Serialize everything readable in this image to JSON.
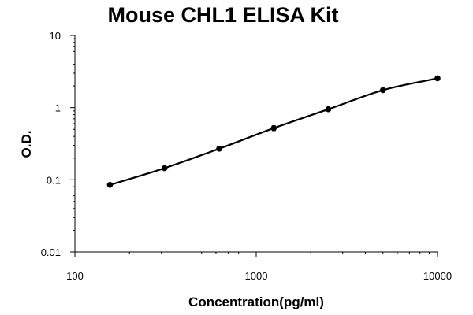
{
  "chart_data": {
    "type": "scatter",
    "title": "Mouse CHL1 ELISA Kit",
    "xlabel": "Concentration(pg/ml)",
    "ylabel": "O.D.",
    "xscale": "log",
    "yscale": "log",
    "xlim": [
      100,
      10000
    ],
    "ylim": [
      0.01,
      10
    ],
    "xticks": [
      "100",
      "1000",
      "10000"
    ],
    "yticks": [
      "0.01",
      "0.1",
      "1",
      "10"
    ],
    "grid": false,
    "legend": "none",
    "fit_line": true,
    "series": [
      {
        "x": [
          156,
          312,
          625,
          1250,
          2500,
          5000,
          10000
        ],
        "y": [
          0.085,
          0.145,
          0.27,
          0.52,
          0.95,
          1.75,
          2.55
        ],
        "yerr": [
          0.003,
          0.005,
          0.006,
          0.04,
          0.02,
          0.03,
          0.05
        ]
      }
    ]
  }
}
